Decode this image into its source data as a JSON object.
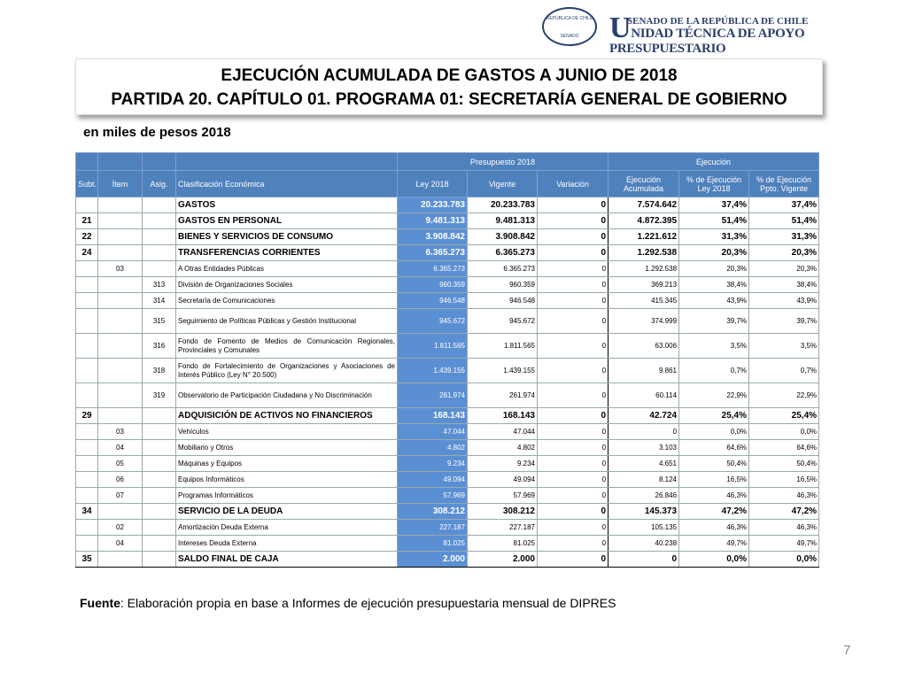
{
  "header": {
    "seal_top": "REPÚBLICA DE CHILE",
    "seal_bottom": "SENADO",
    "org_line": "SENADO DE LA REPÚBLICA DE CHILE",
    "unit_line": "UNIDAD TÉCNICA DE APOYO PRESUPUESTARIO"
  },
  "title": {
    "line1": "EJECUCIÓN ACUMULADA DE GASTOS A JUNIO DE 2018",
    "line2": "PARTIDA 20. CAPÍTULO 01. PROGRAMA 01: SECRETARÍA GENERAL DE GOBIERNO"
  },
  "subtitle": "en miles de pesos 2018",
  "table": {
    "groups": [
      "Presupuesto 2018",
      "Ejecución"
    ],
    "columns": [
      "Subt.",
      "Ítem",
      "Asig.",
      "Clasificación Económica",
      "Ley 2018",
      "Vigente",
      "Variación",
      "Ejecución Acumulada",
      "% de Ejecución Ley 2018",
      "% de Ejecución Ppto. Vigente"
    ],
    "rows": [
      [
        null,
        null,
        null,
        "GASTOS",
        "20.233.783",
        "20.233.783",
        "0",
        "7.574.642",
        "37,4%",
        "37,4%"
      ],
      [
        "21",
        null,
        null,
        "GASTOS EN PERSONAL",
        "9.481.313",
        "9.481.313",
        "0",
        "4.872.395",
        "51,4%",
        "51,4%"
      ],
      [
        "22",
        null,
        null,
        "BIENES Y SERVICIOS DE CONSUMO",
        "3.908.842",
        "3.908.842",
        "0",
        "1.221.612",
        "31,3%",
        "31,3%"
      ],
      [
        "24",
        null,
        null,
        "TRANSFERENCIAS CORRIENTES",
        "6.365.273",
        "6.365.273",
        "0",
        "1.292.538",
        "20,3%",
        "20,3%"
      ],
      [
        null,
        "03",
        null,
        "A Otras Entidades Públicas",
        "6.365.273",
        "6.365.273",
        "0",
        "1.292.538",
        "20,3%",
        "20,3%"
      ],
      [
        null,
        null,
        "313",
        "División de Organizaciones Sociales",
        "960.359",
        "960.359",
        "0",
        "369.213",
        "38,4%",
        "38,4%"
      ],
      [
        null,
        null,
        "314",
        "Secretaría de Comunicaciones",
        "946.548",
        "946.548",
        "0",
        "415.345",
        "43,9%",
        "43,9%"
      ],
      [
        null,
        null,
        "315",
        "Seguimiento de Políticas Públicas y Gestión Institucional",
        "945.672",
        "945.672",
        "0",
        "374.999",
        "39,7%",
        "39,7%"
      ],
      [
        null,
        null,
        "316",
        "Fondo de Fomento de Medios de Comunicación Regionales, Provinciales y Comunales",
        "1.811.565",
        "1.811.565",
        "0",
        "63.006",
        "3,5%",
        "3,5%"
      ],
      [
        null,
        null,
        "318",
        "Fondo de Fortalecimiento de Organizaciones y Asociaciones de Interés Público (Ley N° 20.500)",
        "1.439.155",
        "1.439.155",
        "0",
        "9.861",
        "0,7%",
        "0,7%"
      ],
      [
        null,
        null,
        "319",
        "Observatorio de Participación Ciudadana y No Discriminación",
        "261.974",
        "261.974",
        "0",
        "60.114",
        "22,9%",
        "22,9%"
      ],
      [
        "29",
        null,
        null,
        "ADQUISICIÓN DE ACTIVOS NO FINANCIEROS",
        "168.143",
        "168.143",
        "0",
        "42.724",
        "25,4%",
        "25,4%"
      ],
      [
        null,
        "03",
        null,
        "Vehículos",
        "47.044",
        "47.044",
        "0",
        "0",
        "0,0%",
        "0,0%"
      ],
      [
        null,
        "04",
        null,
        "Mobiliario y Otros",
        "4.802",
        "4.802",
        "0",
        "3.103",
        "64,6%",
        "64,6%"
      ],
      [
        null,
        "05",
        null,
        "Máquinas y Equipos",
        "9.234",
        "9.234",
        "0",
        "4.651",
        "50,4%",
        "50,4%"
      ],
      [
        null,
        "06",
        null,
        "Equipos Informáticos",
        "49.094",
        "49.094",
        "0",
        "8.124",
        "16,5%",
        "16,5%"
      ],
      [
        null,
        "07",
        null,
        "Programas Informáticos",
        "57.969",
        "57.969",
        "0",
        "26.846",
        "46,3%",
        "46,3%"
      ],
      [
        "34",
        null,
        null,
        "SERVICIO DE LA DEUDA",
        "308.212",
        "308.212",
        "0",
        "145.373",
        "47,2%",
        "47,2%"
      ],
      [
        null,
        "02",
        null,
        "Amortización Deuda Externa",
        "227.187",
        "227.187",
        "0",
        "105.135",
        "46,3%",
        "46,3%"
      ],
      [
        null,
        "04",
        null,
        "Intereses Deuda Externa",
        "81.025",
        "81.025",
        "0",
        "40.238",
        "49,7%",
        "49,7%"
      ],
      [
        "35",
        null,
        null,
        "SALDO FINAL DE CAJA",
        "2.000",
        "2.000",
        "0",
        "0",
        "0,0%",
        "0,0%"
      ]
    ]
  },
  "footer": {
    "source_label": "Fuente",
    "source_text": ": Elaboración propia en base  a Informes de ejecución presupuestaria mensual de DIPRES"
  },
  "page_number": "7"
}
